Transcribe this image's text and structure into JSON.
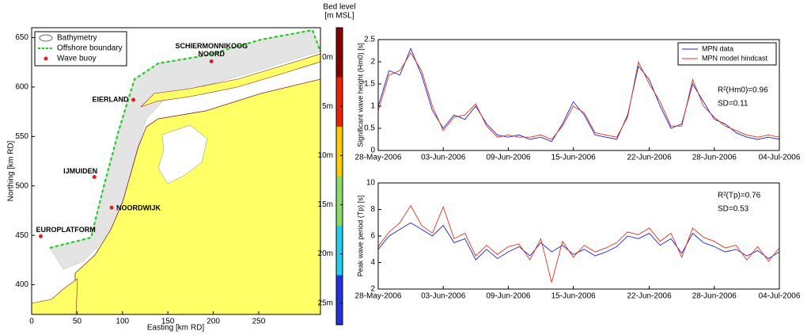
{
  "map": {
    "xlabel": "Easting [km RD]",
    "ylabel": "Northing [km RD]",
    "xlim": [
      0,
      318
    ],
    "ylim": [
      370,
      660
    ],
    "xticks": [
      0,
      50,
      100,
      150,
      200,
      250
    ],
    "yticks": [
      400,
      450,
      500,
      550,
      600,
      650
    ],
    "legend": [
      "Bathymetry",
      "Offshore boundary",
      "Wave buoy"
    ],
    "boundary_color": "#22cc22",
    "buoy_color": "#dd2222",
    "land_color": "#ffff66",
    "buoys": [
      {
        "label": "EUROPLATFORM",
        "x": 10,
        "y": 449
      },
      {
        "label": "IJMUIDEN",
        "x": 69,
        "y": 509
      },
      {
        "label": "NOORDWIJK",
        "x": 88,
        "y": 478
      },
      {
        "label": "EIERLAND",
        "x": 112,
        "y": 587
      },
      {
        "label": [
          "SCHIERMONNIKOOG",
          "NOORD"
        ],
        "x": 198,
        "y": 626
      }
    ]
  },
  "colorbar": {
    "title": [
      "Bed level",
      "[m MSL]"
    ],
    "clim": [
      -3,
      27.2
    ],
    "colors": [
      "#8b0000",
      "#ee2200",
      "#ffcc00",
      "#88dd66",
      "#22ccee",
      "#2233dd"
    ],
    "ticks": [
      {
        "value": 0,
        "label": "0m"
      },
      {
        "value": 5,
        "label": "5m"
      },
      {
        "value": 10,
        "label": "10m"
      },
      {
        "value": 15,
        "label": "15m"
      },
      {
        "value": 20,
        "label": "20m"
      },
      {
        "value": 25,
        "label": "25m"
      }
    ]
  },
  "chart_data": [
    {
      "type": "line",
      "ylabel": "Significant wave height (Hm0) [s]",
      "annotations": [
        "R²(Hm0)=0.96",
        "SD=0.11"
      ],
      "legend": "upper right",
      "x": [
        "2006-05-28",
        "2006-05-29",
        "2006-05-30",
        "2006-05-31",
        "2006-06-01",
        "2006-06-02",
        "2006-06-03",
        "2006-06-04",
        "2006-06-05",
        "2006-06-06",
        "2006-06-07",
        "2006-06-08",
        "2006-06-09",
        "2006-06-10",
        "2006-06-11",
        "2006-06-12",
        "2006-06-13",
        "2006-06-14",
        "2006-06-15",
        "2006-06-16",
        "2006-06-17",
        "2006-06-18",
        "2006-06-19",
        "2006-06-20",
        "2006-06-21",
        "2006-06-22",
        "2006-06-23",
        "2006-06-24",
        "2006-06-25",
        "2006-06-26",
        "2006-06-27",
        "2006-06-28",
        "2006-06-29",
        "2006-06-30",
        "2006-07-01",
        "2006-07-02",
        "2006-07-03",
        "2006-07-04"
      ],
      "series": [
        {
          "name": "MPN data",
          "color": "#2222cc",
          "values": [
            1.0,
            1.8,
            1.7,
            2.3,
            1.7,
            0.9,
            0.5,
            0.8,
            0.7,
            1.0,
            0.6,
            0.35,
            0.3,
            0.35,
            0.25,
            0.3,
            0.2,
            0.6,
            1.1,
            0.8,
            0.35,
            0.3,
            0.25,
            0.8,
            1.9,
            1.6,
            1.0,
            0.5,
            0.6,
            1.5,
            1.1,
            0.7,
            0.6,
            0.4,
            0.3,
            0.25,
            0.3,
            0.25
          ]
        },
        {
          "name": "MPN model hindcast",
          "color": "#e03322",
          "values": [
            0.9,
            1.7,
            1.8,
            2.2,
            1.8,
            1.0,
            0.45,
            0.75,
            0.8,
            1.05,
            0.55,
            0.3,
            0.35,
            0.3,
            0.3,
            0.35,
            0.25,
            0.55,
            1.0,
            0.85,
            0.4,
            0.35,
            0.3,
            0.75,
            2.0,
            1.5,
            1.1,
            0.55,
            0.55,
            1.6,
            1.0,
            0.75,
            0.55,
            0.45,
            0.35,
            0.3,
            0.35,
            0.3
          ]
        }
      ],
      "xlim": [
        "2006-05-28",
        "2006-07-04"
      ],
      "xticks": [
        {
          "value": "2006-05-28",
          "label": "28-May-2006"
        },
        {
          "value": "2006-06-03",
          "label": "03-Jun-2006"
        },
        {
          "value": "2006-06-09",
          "label": "09-Jun-2006"
        },
        {
          "value": "2006-06-15",
          "label": "15-Jun-2006"
        },
        {
          "value": "2006-06-22",
          "label": "22-Jun-2006"
        },
        {
          "value": "2006-06-28",
          "label": "28-Jun-2006"
        },
        {
          "value": "2006-07-04",
          "label": "04-Jul-2006"
        }
      ],
      "ylim": [
        0,
        2.5
      ],
      "yticks": [
        0,
        0.5,
        1,
        1.5,
        2,
        2.5
      ]
    },
    {
      "type": "line",
      "ylabel": "Peak wave period (Tp) [s]",
      "annotations": [
        "R²(Tp)=0.76",
        "SD=0.53"
      ],
      "x": [
        "2006-05-28",
        "2006-05-29",
        "2006-05-30",
        "2006-05-31",
        "2006-06-01",
        "2006-06-02",
        "2006-06-03",
        "2006-06-04",
        "2006-06-05",
        "2006-06-06",
        "2006-06-07",
        "2006-06-08",
        "2006-06-09",
        "2006-06-10",
        "2006-06-11",
        "2006-06-12",
        "2006-06-13",
        "2006-06-14",
        "2006-06-15",
        "2006-06-16",
        "2006-06-17",
        "2006-06-18",
        "2006-06-19",
        "2006-06-20",
        "2006-06-21",
        "2006-06-22",
        "2006-06-23",
        "2006-06-24",
        "2006-06-25",
        "2006-06-26",
        "2006-06-27",
        "2006-06-28",
        "2006-06-29",
        "2006-06-30",
        "2006-07-01",
        "2006-07-02",
        "2006-07-03",
        "2006-07-04"
      ],
      "series": [
        {
          "name": "MPN data",
          "color": "#2222cc",
          "values": [
            5,
            6,
            6.5,
            7,
            6.5,
            6,
            6.8,
            5.5,
            5.8,
            4.2,
            5,
            4.3,
            4.8,
            5.2,
            4.5,
            5.5,
            4.8,
            5.3,
            4.6,
            5,
            4.5,
            4.8,
            5.2,
            6,
            5.8,
            6.2,
            5.3,
            5.8,
            4.7,
            6.2,
            5.5,
            5.2,
            4.8,
            5,
            4.5,
            4.9,
            4.3,
            4.8
          ]
        },
        {
          "name": "MPN model hindcast",
          "color": "#e03322",
          "values": [
            5.2,
            6.3,
            7,
            8.3,
            6.8,
            6.2,
            8.2,
            5.8,
            6.2,
            4.5,
            5.3,
            4.6,
            5.2,
            5.4,
            4.2,
            5.8,
            2.5,
            5.6,
            4.4,
            5.3,
            4.8,
            5.1,
            5.5,
            6.3,
            6.1,
            6.6,
            5.6,
            6.2,
            4.4,
            6.6,
            5.9,
            5.6,
            5.1,
            5.3,
            4.2,
            5.2,
            4.1,
            5.1
          ]
        }
      ],
      "xlim": [
        "2006-05-28",
        "2006-07-04"
      ],
      "xticks": [
        {
          "value": "2006-05-28",
          "label": "28-May-2006"
        },
        {
          "value": "2006-06-03",
          "label": "03-Jun-2006"
        },
        {
          "value": "2006-06-09",
          "label": "09-Jun-2006"
        },
        {
          "value": "2006-06-15",
          "label": "15-Jun-2006"
        },
        {
          "value": "2006-06-22",
          "label": "22-Jun-2006"
        },
        {
          "value": "2006-06-28",
          "label": "28-Jun-2006"
        },
        {
          "value": "2006-07-04",
          "label": "04-Jul-2006"
        }
      ],
      "ylim": [
        2,
        10
      ],
      "yticks": [
        2,
        4,
        6,
        8,
        10
      ]
    }
  ]
}
